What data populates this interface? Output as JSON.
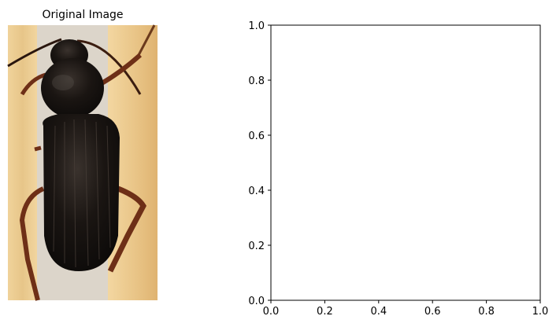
{
  "figure": {
    "left_panel": {
      "title": "Original Image",
      "image_subject": "ground beetle specimen photo",
      "image_colors": {
        "wood": "#e9c98f",
        "gap": "#d9d3c9",
        "beetle_body": "#16120f",
        "legs": "#6e2f17"
      }
    }
  },
  "chart_data": {
    "type": "scatter",
    "title": "",
    "xlabel": "",
    "ylabel": "",
    "series": [],
    "xlim": [
      0.0,
      1.0
    ],
    "ylim": [
      0.0,
      1.0
    ],
    "xticks": [
      "0.0",
      "0.2",
      "0.4",
      "0.6",
      "0.8",
      "1.0"
    ],
    "yticks": [
      "0.0",
      "0.2",
      "0.4",
      "0.6",
      "0.8",
      "1.0"
    ],
    "grid": false
  }
}
